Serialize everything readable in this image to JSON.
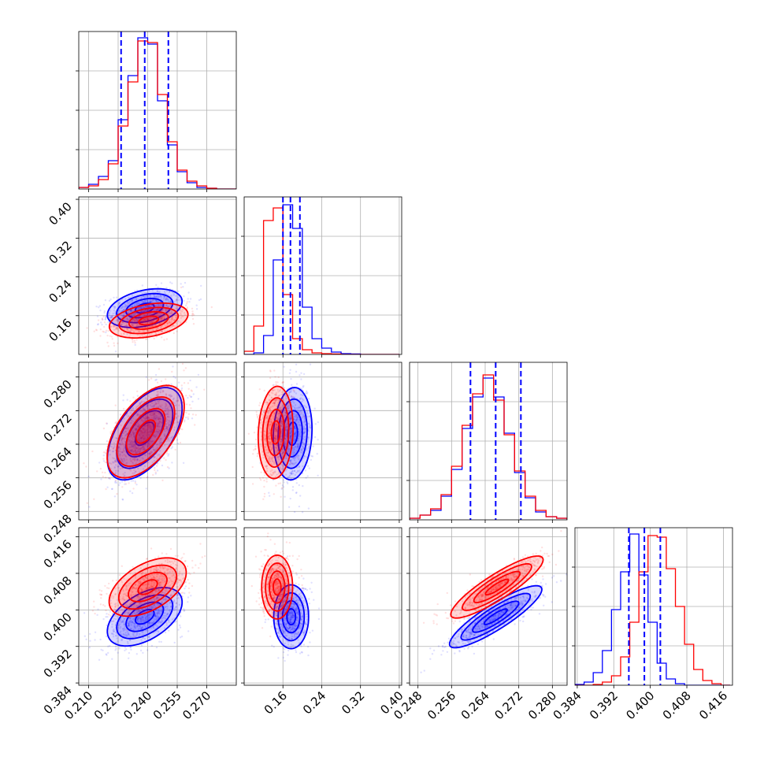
{
  "chart_data": {
    "type": "corner",
    "grid": true,
    "series_colors": [
      "#0000ff",
      "#ff0000"
    ],
    "quantile_line_color": "#0000ff",
    "quantile_line_style": "dashed",
    "params": [
      {
        "range": [
          0.205,
          0.285
        ],
        "ticks": [
          "0.210",
          "0.225",
          "0.240",
          "0.255",
          "0.270"
        ],
        "tick_values": [
          0.21,
          0.225,
          0.24,
          0.255,
          0.27
        ]
      },
      {
        "range": [
          0.08,
          0.405
        ],
        "ticks": [
          "0.16",
          "0.24",
          "0.32",
          "0.40"
        ],
        "tick_values": [
          0.16,
          0.24,
          0.32,
          0.4
        ]
      },
      {
        "range": [
          0.246,
          0.2835
        ],
        "ticks": [
          "0.248",
          "0.256",
          "0.264",
          "0.272",
          "0.280"
        ],
        "tick_values": [
          0.248,
          0.256,
          0.264,
          0.272,
          0.28
        ]
      },
      {
        "range": [
          0.3835,
          0.418
        ],
        "ticks": [
          "0.384",
          "0.392",
          "0.400",
          "0.408",
          "0.416"
        ],
        "tick_values": [
          0.384,
          0.392,
          0.4,
          0.408,
          0.416
        ]
      }
    ],
    "marginals": [
      {
        "bin_edges": [
          0.205,
          0.21,
          0.215,
          0.22,
          0.225,
          0.23,
          0.235,
          0.24,
          0.245,
          0.25,
          0.255,
          0.26,
          0.265,
          0.27,
          0.275,
          0.28,
          0.285
        ],
        "series": [
          {
            "name": "",
            "color": "#0000ff",
            "counts": [
              1,
              3,
              8,
              18,
              44,
              72,
              96,
              92,
              56,
              28,
              11,
              4,
              1,
              0.5,
              0,
              0
            ]
          },
          {
            "name": "",
            "color": "#ff0000",
            "counts": [
              1,
              2,
              6,
              16,
              40,
              68,
              94,
              93,
              60,
              30,
              12,
              5,
              2,
              0.5,
              0,
              0
            ]
          }
        ],
        "quantiles": [
          0.2265,
          0.2385,
          0.2505
        ],
        "ymax": 100
      },
      {
        "bin_edges": [
          0.08,
          0.1,
          0.12,
          0.14,
          0.16,
          0.18,
          0.2,
          0.22,
          0.24,
          0.26,
          0.28,
          0.3,
          0.32,
          0.34,
          0.36,
          0.38,
          0.4
        ],
        "series": [
          {
            "name": "",
            "color": "#0000ff",
            "counts": [
              0,
              1,
              12,
              60,
              95,
              80,
              30,
              10,
              4,
              1.5,
              0.5,
              0.3,
              0,
              0,
              0,
              0
            ]
          },
          {
            "name": "",
            "color": "#ff0000",
            "counts": [
              2,
              18,
              85,
              93,
              38,
              10,
              3,
              1,
              0.5,
              0.3,
              0,
              0,
              0,
              0,
              0,
              0
            ]
          }
        ],
        "quantiles": [
          0.16,
          0.1755,
          0.195
        ],
        "ymax": 100
      },
      {
        "bin_edges": [
          0.246,
          0.2485,
          0.251,
          0.2535,
          0.256,
          0.2585,
          0.261,
          0.2635,
          0.266,
          0.2685,
          0.271,
          0.2735,
          0.276,
          0.2785,
          0.281,
          0.2835
        ],
        "series": [
          {
            "name": "",
            "color": "#0000ff",
            "counts": [
              1,
              3,
              6,
              15,
              32,
              58,
              78,
              90,
              78,
              55,
              30,
              14,
              5,
              2,
              1
            ]
          },
          {
            "name": "",
            "color": "#ff0000",
            "counts": [
              1,
              3,
              7,
              16,
              34,
              60,
              80,
              92,
              76,
              54,
              31,
              15,
              6,
              2,
              1
            ]
          }
        ],
        "quantiles": [
          0.2605,
          0.2665,
          0.2725
        ],
        "ymax": 100
      },
      {
        "bin_edges": [
          0.3835,
          0.3855,
          0.3875,
          0.3895,
          0.3915,
          0.3935,
          0.3955,
          0.3975,
          0.3995,
          0.4015,
          0.4035,
          0.4055,
          0.4075,
          0.4095,
          0.4115,
          0.4135,
          0.4155,
          0.4175
        ],
        "series": [
          {
            "name": "",
            "color": "#0000ff",
            "counts": [
              0.5,
              2,
              8,
              22,
              48,
              72,
              96,
              70,
              40,
              14,
              4,
              1,
              0,
              0,
              0,
              0,
              0
            ]
          },
          {
            "name": "",
            "color": "#ff0000",
            "counts": [
              0,
              0,
              0.5,
              2,
              6,
              18,
              40,
              72,
              95,
              94,
              74,
              50,
              26,
              10,
              3,
              1,
              0
            ]
          }
        ],
        "quantiles": [
          0.3953,
          0.3987,
          0.4022
        ],
        "ymax": 100
      }
    ],
    "pairs": [
      {
        "row": 1,
        "col": 0,
        "series": [
          {
            "color": "#0000ff",
            "mean": [
              0.2385,
              0.1755
            ],
            "sd": [
              0.0095,
              0.02
            ],
            "corr": 0.35
          },
          {
            "color": "#ff0000",
            "mean": [
              0.2405,
              0.15
            ],
            "sd": [
              0.01,
              0.018
            ],
            "corr": 0.35
          }
        ]
      },
      {
        "row": 2,
        "col": 0,
        "series": [
          {
            "color": "#0000ff",
            "mean": [
              0.2385,
              0.2665
            ],
            "sd": [
              0.0095,
              0.0055
            ],
            "corr": 0.55
          },
          {
            "color": "#ff0000",
            "mean": [
              0.239,
              0.267
            ],
            "sd": [
              0.0098,
              0.0055
            ],
            "corr": 0.55
          }
        ]
      },
      {
        "row": 2,
        "col": 1,
        "series": [
          {
            "color": "#0000ff",
            "mean": [
              0.18,
              0.2665
            ],
            "sd": [
              0.02,
              0.0055
            ],
            "corr": 0.1
          },
          {
            "color": "#ff0000",
            "mean": [
              0.145,
              0.2668
            ],
            "sd": [
              0.018,
              0.0055
            ],
            "corr": 0.1
          }
        ]
      },
      {
        "row": 3,
        "col": 0,
        "series": [
          {
            "color": "#0000ff",
            "mean": [
              0.2385,
              0.3985
            ],
            "sd": [
              0.0095,
              0.0032
            ],
            "corr": 0.5
          },
          {
            "color": "#ff0000",
            "mean": [
              0.24,
              0.405
            ],
            "sd": [
              0.0098,
              0.0032
            ],
            "corr": 0.5
          }
        ]
      },
      {
        "row": 3,
        "col": 1,
        "series": [
          {
            "color": "#0000ff",
            "mean": [
              0.177,
              0.3985
            ],
            "sd": [
              0.018,
              0.0035
            ],
            "corr": 0.0
          },
          {
            "color": "#ff0000",
            "mean": [
              0.148,
              0.405
            ],
            "sd": [
              0.016,
              0.0035
            ],
            "corr": 0.0
          }
        ]
      },
      {
        "row": 3,
        "col": 2,
        "series": [
          {
            "color": "#0000ff",
            "mean": [
              0.2665,
              0.3985
            ],
            "sd": [
              0.0055,
              0.0034
            ],
            "corr": 0.88
          },
          {
            "color": "#ff0000",
            "mean": [
              0.2668,
              0.405
            ],
            "sd": [
              0.0055,
              0.0034
            ],
            "corr": 0.88
          }
        ]
      }
    ]
  }
}
